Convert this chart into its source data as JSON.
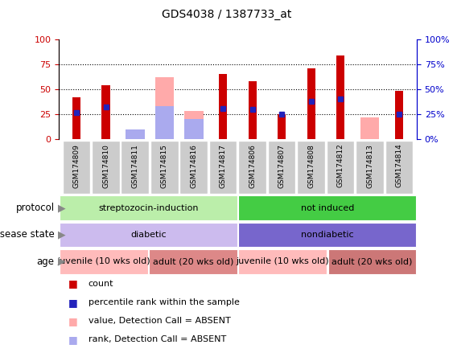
{
  "title": "GDS4038 / 1387733_at",
  "samples": [
    "GSM174809",
    "GSM174810",
    "GSM174811",
    "GSM174815",
    "GSM174816",
    "GSM174817",
    "GSM174806",
    "GSM174807",
    "GSM174808",
    "GSM174812",
    "GSM174813",
    "GSM174814"
  ],
  "count": [
    42,
    54,
    0,
    0,
    0,
    65,
    58,
    25,
    71,
    84,
    0,
    48
  ],
  "percentile": [
    27,
    32,
    0,
    0,
    0,
    31,
    30,
    25,
    38,
    40,
    0,
    25
  ],
  "absent_value": [
    0,
    0,
    5,
    62,
    28,
    0,
    0,
    0,
    0,
    0,
    22,
    0
  ],
  "absent_rank": [
    0,
    0,
    10,
    33,
    20,
    0,
    0,
    0,
    0,
    0,
    0,
    0
  ],
  "ylim": [
    0,
    100
  ],
  "count_color": "#cc0000",
  "percentile_color": "#2222bb",
  "absent_value_color": "#ffaaaa",
  "absent_rank_color": "#aaaaee",
  "protocol_groups": [
    {
      "label": "streptozocin-induction",
      "start": 0,
      "end": 6,
      "color": "#bbeeaa"
    },
    {
      "label": "not induced",
      "start": 6,
      "end": 12,
      "color": "#44cc44"
    }
  ],
  "disease_groups": [
    {
      "label": "diabetic",
      "start": 0,
      "end": 6,
      "color": "#ccbbee"
    },
    {
      "label": "nondiabetic",
      "start": 6,
      "end": 12,
      "color": "#7766cc"
    }
  ],
  "age_groups": [
    {
      "label": "juvenile (10 wks old)",
      "start": 0,
      "end": 3,
      "color": "#ffbbbb"
    },
    {
      "label": "adult (20 wks old)",
      "start": 3,
      "end": 6,
      "color": "#dd8888"
    },
    {
      "label": "juvenile (10 wks old)",
      "start": 6,
      "end": 9,
      "color": "#ffbbbb"
    },
    {
      "label": "adult (20 wks old)",
      "start": 9,
      "end": 12,
      "color": "#cc7777"
    }
  ],
  "left_axis_color": "#cc0000",
  "right_axis_color": "#0000cc",
  "xtick_bg": "#cccccc",
  "legend_items": [
    {
      "color": "#cc0000",
      "label": "count"
    },
    {
      "color": "#2222bb",
      "label": "percentile rank within the sample"
    },
    {
      "color": "#ffaaaa",
      "label": "value, Detection Call = ABSENT"
    },
    {
      "color": "#aaaaee",
      "label": "rank, Detection Call = ABSENT"
    }
  ]
}
